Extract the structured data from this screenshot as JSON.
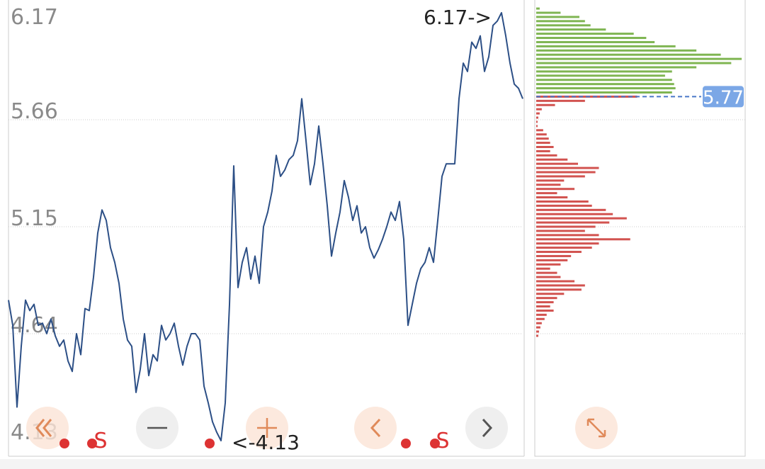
{
  "chart_data": {
    "type": "line",
    "color": "#2c4f86",
    "ylim": [
      4.13,
      6.17
    ],
    "yticks": [
      6.17,
      5.66,
      5.15,
      4.64,
      4.13
    ],
    "grid": true,
    "annotations": {
      "high": "6.17->",
      "low": "<-4.13"
    },
    "markers": [
      "S",
      "S"
    ],
    "values": [
      4.8,
      4.68,
      4.29,
      4.58,
      4.8,
      4.75,
      4.78,
      4.68,
      4.69,
      4.64,
      4.71,
      4.63,
      4.58,
      4.61,
      4.51,
      4.46,
      4.64,
      4.54,
      4.76,
      4.75,
      4.91,
      5.12,
      5.23,
      5.18,
      5.05,
      4.98,
      4.88,
      4.71,
      4.61,
      4.58,
      4.36,
      4.47,
      4.64,
      4.44,
      4.54,
      4.51,
      4.68,
      4.61,
      4.64,
      4.69,
      4.58,
      4.49,
      4.58,
      4.64,
      4.64,
      4.61,
      4.39,
      4.31,
      4.22,
      4.17,
      4.13,
      4.31,
      4.78,
      5.44,
      4.86,
      4.98,
      5.05,
      4.9,
      5.01,
      4.88,
      5.15,
      5.22,
      5.32,
      5.49,
      5.39,
      5.42,
      5.47,
      5.49,
      5.56,
      5.76,
      5.56,
      5.35,
      5.45,
      5.63,
      5.45,
      5.25,
      5.01,
      5.12,
      5.22,
      5.37,
      5.29,
      5.18,
      5.25,
      5.12,
      5.15,
      5.05,
      5.0,
      5.04,
      5.09,
      5.15,
      5.22,
      5.18,
      5.27,
      5.09,
      4.68,
      4.78,
      4.88,
      4.95,
      4.98,
      5.05,
      4.98,
      5.18,
      5.39,
      5.45,
      5.45,
      5.45,
      5.76,
      5.93,
      5.89,
      6.03,
      6.0,
      6.06,
      5.89,
      5.96,
      6.11,
      6.13,
      6.17,
      6.06,
      5.93,
      5.83,
      5.81,
      5.76
    ],
    "profile": {
      "type": "bar",
      "current": 5.77,
      "current_label": "5.77",
      "xlim": [
        0,
        300
      ],
      "series": [
        {
          "color": "#7fb552",
          "levels": [
            6.19,
            6.17,
            6.15,
            6.13,
            6.11,
            6.09,
            6.07,
            6.05,
            6.03,
            6.01,
            5.99,
            5.97,
            5.95,
            5.93,
            5.91,
            5.89,
            5.87,
            5.85,
            5.83,
            5.81,
            5.79
          ],
          "values": [
            5,
            35,
            62,
            70,
            78,
            100,
            140,
            158,
            170,
            200,
            230,
            265,
            295,
            280,
            230,
            195,
            185,
            195,
            198,
            200,
            195
          ]
        },
        {
          "color": "#d25350",
          "levels": [
            5.77,
            5.75,
            5.73,
            5.71,
            5.69,
            5.67,
            5.65,
            5.63,
            5.61,
            5.59,
            5.57,
            5.55,
            5.53,
            5.51,
            5.49,
            5.47,
            5.45,
            5.43,
            5.41,
            5.39,
            5.37,
            5.35,
            5.33,
            5.31,
            5.29,
            5.27,
            5.25,
            5.23,
            5.21,
            5.19,
            5.17,
            5.15,
            5.13,
            5.11,
            5.09,
            5.07,
            5.05,
            5.03,
            5.01,
            4.99,
            4.97,
            4.95,
            4.93,
            4.91,
            4.89,
            4.87,
            4.85,
            4.83,
            4.81,
            4.79,
            4.77,
            4.75,
            4.73,
            4.71,
            4.69,
            4.67,
            4.65,
            4.63
          ],
          "values": [
            145,
            70,
            27,
            8,
            5,
            3,
            2,
            2,
            10,
            15,
            18,
            20,
            25,
            20,
            30,
            45,
            60,
            90,
            85,
            70,
            40,
            35,
            55,
            30,
            45,
            75,
            80,
            100,
            110,
            130,
            105,
            85,
            70,
            90,
            135,
            90,
            80,
            65,
            50,
            45,
            35,
            20,
            30,
            35,
            55,
            70,
            65,
            40,
            30,
            25,
            20,
            25,
            15,
            12,
            8,
            6,
            4,
            3
          ]
        }
      ]
    }
  }
}
